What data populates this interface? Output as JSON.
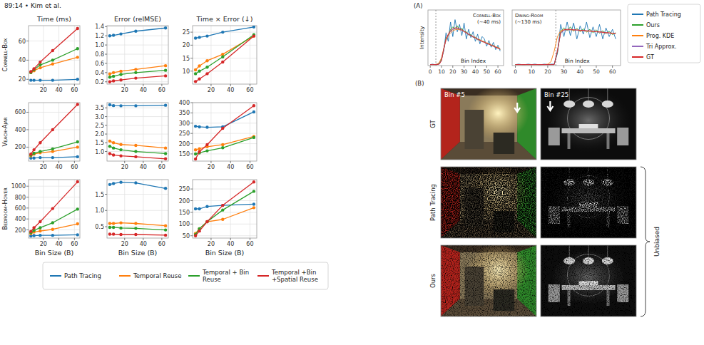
{
  "header": "89:14 • Kim et al.",
  "chart_data": [
    {
      "type": "line",
      "title": "Time (ms)",
      "ylabel": "Cornell-Box",
      "x": [
        4,
        8,
        16,
        32,
        64
      ],
      "xlim": [
        1,
        67
      ],
      "xticks": [
        20,
        40,
        60
      ],
      "ylim": [
        15,
        76
      ],
      "yticks": [
        20,
        40,
        60
      ],
      "grid": true,
      "marker": "circle",
      "legend": "bottom",
      "series": [
        {
          "name": "Path Tracing",
          "color": "#1f77b4",
          "values": [
            19,
            19,
            19,
            19,
            20
          ]
        },
        {
          "name": "Temporal Reuse",
          "color": "#ff7f0e",
          "values": [
            27,
            29,
            32,
            36,
            43
          ]
        },
        {
          "name": "Temporal + Bin Reuse",
          "color": "#2ca02c",
          "values": [
            27,
            30,
            35,
            40,
            52
          ]
        },
        {
          "name": "Temporal +Bin +Spatial Reuse",
          "color": "#d62728",
          "values": [
            28,
            31,
            38,
            50,
            73
          ]
        }
      ]
    },
    {
      "type": "line",
      "title": "Error (relMSE)",
      "x": [
        4,
        8,
        16,
        32,
        64
      ],
      "xlim": [
        1,
        67
      ],
      "xticks": [
        20,
        40,
        60
      ],
      "ylim": [
        0.15,
        1.42
      ],
      "yticks": [
        0.2,
        0.4,
        0.6,
        0.8,
        {
          "value": 1,
          "label": "1.0"
        },
        1.2,
        1.4
      ],
      "grid": true,
      "marker": "circle",
      "series": [
        {
          "color": "#1f77b4",
          "values": [
            1.2,
            1.21,
            1.24,
            1.3,
            1.37
          ]
        },
        {
          "color": "#ff7f0e",
          "values": [
            0.37,
            0.4,
            0.43,
            0.47,
            0.55
          ]
        },
        {
          "color": "#2ca02c",
          "values": [
            0.3,
            0.32,
            0.36,
            0.4,
            0.45
          ]
        },
        {
          "color": "#d62728",
          "values": [
            0.2,
            0.22,
            0.24,
            0.28,
            0.33
          ]
        }
      ]
    },
    {
      "type": "line",
      "title": "Time × Error (↓)",
      "x": [
        4,
        8,
        16,
        32,
        64
      ],
      "xlim": [
        1,
        67
      ],
      "xticks": [
        20,
        40,
        60
      ],
      "ylim": [
        5,
        27.5
      ],
      "yticks": [
        10,
        15,
        20,
        25
      ],
      "grid": true,
      "marker": "circle",
      "series": [
        {
          "color": "#1f77b4",
          "values": [
            22.7,
            23,
            23.5,
            25,
            27
          ]
        },
        {
          "color": "#ff7f0e",
          "values": [
            10.5,
            12,
            14,
            16.5,
            23.5
          ]
        },
        {
          "color": "#2ca02c",
          "values": [
            9,
            10,
            11.5,
            15.5,
            24
          ]
        },
        {
          "color": "#d62728",
          "values": [
            6,
            7,
            9,
            13.5,
            23.5
          ]
        }
      ]
    },
    {
      "type": "line",
      "ylabel": "Veach-Ajar",
      "x": [
        4,
        8,
        16,
        32,
        64
      ],
      "xlim": [
        1,
        67
      ],
      "xticks": [
        20,
        40,
        60
      ],
      "ylim": [
        40,
        710
      ],
      "yticks": [
        200,
        400,
        600
      ],
      "grid": true,
      "marker": "circle",
      "series": [
        {
          "color": "#1f77b4",
          "values": [
            75,
            75,
            80,
            80,
            90
          ]
        },
        {
          "color": "#ff7f0e",
          "values": [
            100,
            120,
            135,
            150,
            200
          ]
        },
        {
          "color": "#2ca02c",
          "values": [
            110,
            130,
            150,
            180,
            260
          ]
        },
        {
          "color": "#d62728",
          "values": [
            120,
            170,
            250,
            400,
            690
          ]
        }
      ]
    },
    {
      "type": "line",
      "x": [
        4,
        8,
        16,
        32,
        64
      ],
      "xlim": [
        1,
        67
      ],
      "xticks": [
        20,
        40,
        60
      ],
      "ylim": [
        0.45,
        3.8
      ],
      "yticks": [
        {
          "value": 1,
          "label": "1.0"
        },
        1.5,
        {
          "value": 2,
          "label": "2.0"
        },
        2.5,
        {
          "value": 3,
          "label": "3.0"
        },
        3.5
      ],
      "grid": true,
      "marker": "circle",
      "series": [
        {
          "color": "#1f77b4",
          "values": [
            3.68,
            3.63,
            3.62,
            3.62,
            3.65
          ]
        },
        {
          "color": "#ff7f0e",
          "values": [
            1.6,
            1.5,
            1.4,
            1.35,
            1.2
          ]
        },
        {
          "color": "#2ca02c",
          "values": [
            1.3,
            1.2,
            1.1,
            1.0,
            0.88
          ]
        },
        {
          "color": "#d62728",
          "values": [
            0.88,
            0.8,
            0.75,
            0.7,
            0.58
          ]
        }
      ]
    },
    {
      "type": "line",
      "x": [
        4,
        8,
        16,
        32,
        64
      ],
      "xlim": [
        1,
        67
      ],
      "xticks": [
        20,
        40,
        60
      ],
      "ylim": [
        115,
        400
      ],
      "yticks": [
        150,
        200,
        250,
        300,
        350,
        400
      ],
      "grid": true,
      "marker": "circle",
      "series": [
        {
          "color": "#1f77b4",
          "values": [
            285,
            282,
            280,
            282,
            355
          ]
        },
        {
          "color": "#ff7f0e",
          "values": [
            170,
            175,
            185,
            195,
            235
          ]
        },
        {
          "color": "#2ca02c",
          "values": [
            150,
            155,
            165,
            180,
            230
          ]
        },
        {
          "color": "#d62728",
          "values": [
            125,
            160,
            195,
            275,
            385
          ]
        }
      ]
    },
    {
      "type": "line",
      "ylabel": "Bedroom-Hover",
      "xlabel": "Bin Size (B)",
      "x": [
        4,
        8,
        16,
        32,
        64
      ],
      "xlim": [
        1,
        67
      ],
      "xticks": [
        20,
        40,
        60
      ],
      "ylim": [
        50,
        1120
      ],
      "yticks": [
        200,
        400,
        600,
        800,
        1000
      ],
      "grid": true,
      "marker": "circle",
      "series": [
        {
          "color": "#1f77b4",
          "values": [
            90,
            95,
            100,
            100,
            110
          ]
        },
        {
          "color": "#ff7f0e",
          "values": [
            130,
            160,
            180,
            210,
            310
          ]
        },
        {
          "color": "#2ca02c",
          "values": [
            150,
            190,
            240,
            330,
            580
          ]
        },
        {
          "color": "#d62728",
          "values": [
            170,
            240,
            350,
            590,
            1080
          ]
        }
      ]
    },
    {
      "type": "line",
      "xlabel": "Bin Size (B)",
      "x": [
        4,
        8,
        16,
        32,
        64
      ],
      "xlim": [
        1,
        67
      ],
      "xticks": [
        20,
        40,
        60
      ],
      "ylim": [
        0.15,
        1.95
      ],
      "yticks": [
        0.5,
        {
          "value": 1,
          "label": "1.0"
        },
        1.5
      ],
      "grid": true,
      "marker": "circle",
      "series": [
        {
          "color": "#1f77b4",
          "values": [
            1.8,
            1.83,
            1.87,
            1.85,
            1.68
          ]
        },
        {
          "color": "#ff7f0e",
          "values": [
            0.6,
            0.6,
            0.62,
            0.6,
            0.53
          ]
        },
        {
          "color": "#2ca02c",
          "values": [
            0.48,
            0.48,
            0.46,
            0.45,
            0.4
          ]
        },
        {
          "color": "#d62728",
          "values": [
            0.27,
            0.27,
            0.26,
            0.26,
            0.24
          ]
        }
      ]
    },
    {
      "type": "line",
      "xlabel": "Bin Size (B)",
      "x": [
        4,
        8,
        16,
        32,
        64
      ],
      "xlim": [
        1,
        67
      ],
      "xticks": [
        20,
        40,
        60
      ],
      "ylim": [
        40,
        290
      ],
      "yticks": [
        50,
        100,
        150,
        200,
        250
      ],
      "grid": true,
      "marker": "circle",
      "series": [
        {
          "color": "#1f77b4",
          "values": [
            165,
            165,
            175,
            180,
            185
          ]
        },
        {
          "color": "#ff7f0e",
          "values": [
            60,
            80,
            110,
            120,
            170
          ]
        },
        {
          "color": "#2ca02c",
          "values": [
            55,
            80,
            110,
            160,
            240
          ]
        },
        {
          "color": "#d62728",
          "values": [
            50,
            70,
            110,
            180,
            280
          ]
        }
      ]
    },
    {
      "type": "line",
      "title": "Cornell-Box",
      "subtitle": "(~40 ms)",
      "ylabel": "Intensity",
      "xlabel": "Bin Index",
      "tick_labels": "x",
      "legend": "right",
      "grid": false,
      "marker": "none",
      "annotations": [
        {
          "text": "(A)"
        },
        {
          "x": 5,
          "line_style": "dashed"
        }
      ],
      "x": [
        0,
        2,
        4,
        6,
        8,
        10,
        12,
        14,
        16,
        18,
        20,
        22,
        24,
        26,
        28,
        30,
        32,
        34,
        36,
        38,
        40,
        42,
        44,
        46,
        48,
        50,
        52,
        54,
        56,
        58,
        60,
        62
      ],
      "xlim": [
        -2,
        65
      ],
      "xticks": [
        0,
        10,
        20,
        30,
        40,
        50,
        60
      ],
      "ylim": [
        0,
        1.15
      ],
      "series": [
        {
          "name": "Path Tracing",
          "color": "#1f77b4",
          "values": [
            0.02,
            0.03,
            0.02,
            0.03,
            0.05,
            0.15,
            0.3,
            0.68,
            0.5,
            0.9,
            0.6,
            0.95,
            0.7,
            0.85,
            0.62,
            0.88,
            0.55,
            0.75,
            0.58,
            0.7,
            0.5,
            0.65,
            0.45,
            0.6,
            0.55,
            0.4,
            0.52,
            0.38,
            0.48,
            0.33,
            0.42,
            0.3
          ]
        },
        {
          "name": "Ours",
          "color": "#2ca02c",
          "values": [
            0.02,
            0.02,
            0.02,
            0.02,
            0.04,
            0.12,
            0.33,
            0.57,
            0.63,
            0.75,
            0.8,
            0.76,
            0.82,
            0.74,
            0.77,
            0.7,
            0.7,
            0.63,
            0.64,
            0.58,
            0.59,
            0.53,
            0.54,
            0.49,
            0.5,
            0.45,
            0.46,
            0.41,
            0.42,
            0.37,
            0.38,
            0.33
          ]
        },
        {
          "name": "Prog. KDE",
          "color": "#ff7f0e",
          "values": [
            0.02,
            0.02,
            0.02,
            0.03,
            0.06,
            0.16,
            0.36,
            0.52,
            0.62,
            0.68,
            0.72,
            0.74,
            0.75,
            0.74,
            0.73,
            0.7,
            0.68,
            0.65,
            0.62,
            0.6,
            0.58,
            0.55,
            0.53,
            0.51,
            0.49,
            0.47,
            0.45,
            0.43,
            0.41,
            0.39,
            0.37,
            0.35
          ]
        },
        {
          "name": "Tri Approx.",
          "color": "#9467bd",
          "values": [
            0.02,
            0.02,
            0.02,
            0.02,
            0.03,
            0.11,
            0.34,
            0.54,
            0.64,
            0.71,
            0.75,
            0.77,
            0.77,
            0.75,
            0.73,
            0.7,
            0.67,
            0.64,
            0.62,
            0.59,
            0.57,
            0.54,
            0.52,
            0.5,
            0.48,
            0.46,
            0.44,
            0.42,
            0.4,
            0.38,
            0.36,
            0.34
          ]
        },
        {
          "name": "GT",
          "color": "#d62728",
          "values": [
            0.02,
            0.02,
            0.02,
            0.02,
            0.03,
            0.1,
            0.35,
            0.55,
            0.65,
            0.72,
            0.76,
            0.78,
            0.78,
            0.76,
            0.74,
            0.71,
            0.68,
            0.65,
            0.62,
            0.6,
            0.57,
            0.55,
            0.52,
            0.5,
            0.48,
            0.46,
            0.44,
            0.42,
            0.4,
            0.38,
            0.36,
            0.34
          ]
        }
      ]
    },
    {
      "type": "line",
      "title": "Dining-Room",
      "subtitle": "(~130 ms)",
      "xlabel": "Bin Index",
      "tick_labels": "x",
      "grid": false,
      "marker": "none",
      "annotations": [
        {
          "x": 25,
          "line_style": "dashed"
        }
      ],
      "x": [
        0,
        2,
        4,
        6,
        8,
        10,
        12,
        14,
        16,
        18,
        20,
        22,
        24,
        26,
        28,
        30,
        32,
        34,
        36,
        38,
        40,
        42,
        44,
        46,
        48,
        50,
        52,
        54,
        56,
        58,
        60,
        62
      ],
      "xlim": [
        -2,
        65
      ],
      "xticks": [
        0,
        10,
        20,
        30,
        40,
        50,
        60
      ],
      "ylim": [
        0,
        1.15
      ],
      "series": [
        {
          "color": "#1f77b4",
          "values": [
            0.02,
            0.03,
            0.02,
            0.02,
            0.03,
            0.02,
            0.03,
            0.02,
            0.02,
            0.03,
            0.02,
            0.03,
            0.03,
            0.25,
            0.85,
            0.6,
            0.9,
            0.62,
            0.88,
            0.55,
            0.82,
            0.65,
            0.9,
            0.58,
            0.8,
            0.6,
            0.85,
            0.55,
            0.78,
            0.6,
            0.75,
            0.55
          ]
        },
        {
          "color": "#2ca02c",
          "values": [
            0.02,
            0.02,
            0.02,
            0.02,
            0.02,
            0.02,
            0.02,
            0.02,
            0.02,
            0.02,
            0.02,
            0.02,
            0.02,
            0.28,
            0.7,
            0.78,
            0.72,
            0.8,
            0.71,
            0.77,
            0.7,
            0.76,
            0.69,
            0.75,
            0.68,
            0.74,
            0.67,
            0.72,
            0.66,
            0.71,
            0.64,
            0.68
          ]
        },
        {
          "color": "#ff7f0e",
          "values": [
            0.02,
            0.02,
            0.02,
            0.02,
            0.02,
            0.02,
            0.02,
            0.02,
            0.02,
            0.02,
            0.03,
            0.08,
            0.3,
            0.6,
            0.72,
            0.74,
            0.74,
            0.74,
            0.73,
            0.73,
            0.72,
            0.72,
            0.71,
            0.71,
            0.7,
            0.7,
            0.69,
            0.68,
            0.68,
            0.67,
            0.66,
            0.66
          ]
        },
        {
          "color": "#9467bd",
          "values": [
            0.02,
            0.02,
            0.02,
            0.02,
            0.02,
            0.02,
            0.02,
            0.02,
            0.02,
            0.02,
            0.02,
            0.02,
            0.02,
            0.32,
            0.67,
            0.73,
            0.74,
            0.74,
            0.74,
            0.73,
            0.73,
            0.72,
            0.72,
            0.71,
            0.71,
            0.7,
            0.69,
            0.69,
            0.68,
            0.67,
            0.67,
            0.66
          ]
        },
        {
          "color": "#d62728",
          "values": [
            0.02,
            0.02,
            0.02,
            0.02,
            0.02,
            0.02,
            0.02,
            0.02,
            0.02,
            0.02,
            0.02,
            0.02,
            0.02,
            0.3,
            0.68,
            0.74,
            0.75,
            0.75,
            0.74,
            0.74,
            0.73,
            0.73,
            0.72,
            0.72,
            0.71,
            0.7,
            0.7,
            0.69,
            0.68,
            0.68,
            0.67,
            0.66
          ]
        }
      ]
    }
  ],
  "figure_b": {
    "label": "(B)",
    "columns": [
      "Bin #5",
      "Bin #25"
    ],
    "rows": [
      "GT",
      "Path Tracing",
      "Ours"
    ],
    "bracket": "Unbiased"
  }
}
